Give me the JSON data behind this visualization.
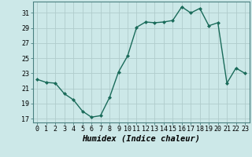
{
  "x": [
    0,
    1,
    2,
    3,
    4,
    5,
    6,
    7,
    8,
    9,
    10,
    11,
    12,
    13,
    14,
    15,
    16,
    17,
    18,
    19,
    20,
    21,
    22,
    23
  ],
  "y": [
    22.2,
    21.8,
    21.7,
    20.3,
    19.5,
    18.0,
    17.2,
    17.4,
    19.8,
    23.2,
    25.3,
    29.1,
    29.8,
    29.7,
    29.8,
    30.0,
    31.8,
    31.0,
    31.6,
    29.3,
    29.7,
    21.7,
    23.7,
    23.0
  ],
  "line_color": "#1a6b5a",
  "marker": "D",
  "marker_size": 2.0,
  "bg_color": "#cce8e8",
  "grid_color": "#b0cccc",
  "xlabel": "Humidex (Indice chaleur)",
  "xlabel_fontsize": 7.5,
  "yticks": [
    17,
    19,
    21,
    23,
    25,
    27,
    29,
    31
  ],
  "xtick_labels": [
    "0",
    "1",
    "2",
    "3",
    "4",
    "5",
    "6",
    "7",
    "8",
    "9",
    "10",
    "11",
    "12",
    "13",
    "14",
    "15",
    "16",
    "17",
    "18",
    "19",
    "20",
    "21",
    "22",
    "23"
  ],
  "xlim": [
    -0.5,
    23.5
  ],
  "ylim": [
    16.5,
    32.5
  ],
  "tick_fontsize": 6.0,
  "line_width": 1.0
}
